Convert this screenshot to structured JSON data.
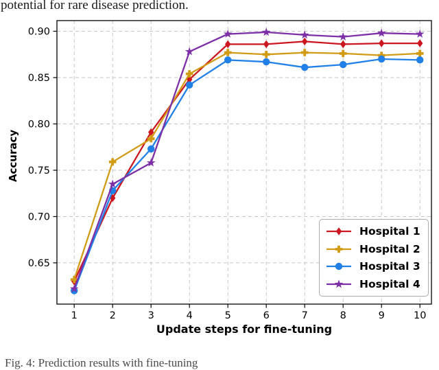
{
  "page": {
    "caption_top": "potential for rare disease prediction.",
    "caption_bottom": "Fig. 4: Prediction results with fine-tuning"
  },
  "chart_data": {
    "type": "line",
    "title": "",
    "xlabel": "Update steps for fine-tuning",
    "ylabel": "Accuracy",
    "x": [
      1,
      2,
      3,
      4,
      5,
      6,
      7,
      8,
      9,
      10
    ],
    "xtick_labels": [
      "1",
      "2",
      "3",
      "4",
      "5",
      "6",
      "7",
      "8",
      "9",
      "10"
    ],
    "yticks": [
      0.65,
      0.7,
      0.75,
      0.8,
      0.85,
      0.9
    ],
    "ytick_labels": [
      "0.65",
      "0.70",
      "0.75",
      "0.80",
      "0.85",
      "0.90"
    ],
    "xlim": [
      0.55,
      10.3
    ],
    "ylim": [
      0.6055,
      0.9115
    ],
    "grid": "dashed both axes",
    "legend_position": "lower right",
    "series": [
      {
        "name": "Hospital 1",
        "color": "#cc1620",
        "marker": "diamond",
        "values": [
          0.63,
          0.72,
          0.791,
          0.848,
          0.886,
          0.886,
          0.889,
          0.886,
          0.887,
          0.887
        ]
      },
      {
        "name": "Hospital 2",
        "color": "#d29b16",
        "marker": "plus",
        "values": [
          0.632,
          0.759,
          0.784,
          0.854,
          0.877,
          0.875,
          0.877,
          0.876,
          0.874,
          0.876
        ]
      },
      {
        "name": "Hospital 3",
        "color": "#2080e8",
        "marker": "circle",
        "values": [
          0.62,
          0.728,
          0.773,
          0.842,
          0.869,
          0.867,
          0.861,
          0.864,
          0.87,
          0.869
        ]
      },
      {
        "name": "Hospital 4",
        "color": "#7d2fa8",
        "marker": "star",
        "values": [
          0.622,
          0.735,
          0.758,
          0.878,
          0.897,
          0.899,
          0.896,
          0.894,
          0.898,
          0.897
        ]
      }
    ]
  }
}
